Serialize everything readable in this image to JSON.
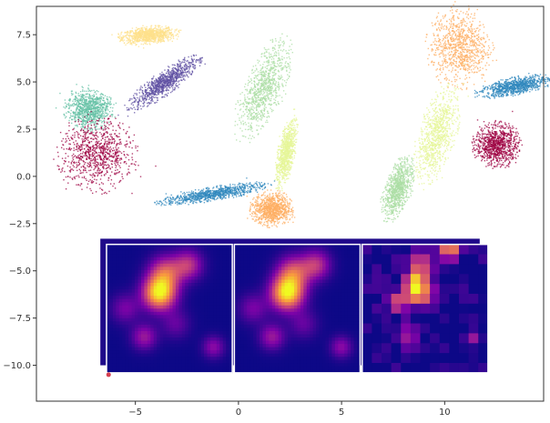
{
  "chart_data": {
    "type": "scatter",
    "title": "",
    "xlabel": "",
    "ylabel": "",
    "xlim": [
      -9.8,
      14.8
    ],
    "ylim": [
      -11.9,
      9.0
    ],
    "grid": false,
    "x_ticks": [
      -5,
      0,
      5,
      10
    ],
    "y_ticks": [
      -10.0,
      -7.5,
      -5.0,
      -2.5,
      0.0,
      2.5,
      5.0,
      7.5
    ],
    "x_tick_labels": [
      "−5",
      "0",
      "5",
      "10"
    ],
    "y_tick_labels": [
      "−10.0",
      "−7.5",
      "−5.0",
      "−2.5",
      "0.0",
      "2.5",
      "5.0",
      "7.5"
    ],
    "clusters": [
      {
        "id": "cream-top",
        "color": "#fee08b",
        "center": [
          -4.4,
          7.5
        ],
        "extent": [
          1.4,
          0.45
        ],
        "angle": 5
      },
      {
        "id": "purple-diagonal",
        "color": "#5e4fa2",
        "center": [
          -3.6,
          5.0
        ],
        "extent": [
          2.1,
          0.55
        ],
        "angle": 38
      },
      {
        "id": "teal-left",
        "color": "#66c2a5",
        "center": [
          -7.3,
          3.6
        ],
        "extent": [
          1.1,
          1.1
        ],
        "angle": 30
      },
      {
        "id": "crimson-blob",
        "color": "#9e0142",
        "center": [
          -6.9,
          1.2
        ],
        "extent": [
          1.85,
          1.9
        ],
        "angle": 0
      },
      {
        "id": "lightgreen-leaf",
        "color": "#abdda4",
        "center": [
          1.2,
          4.7
        ],
        "extent": [
          2.8,
          0.9
        ],
        "angle": 70
      },
      {
        "id": "yellowgreen-small",
        "color": "#e6f598",
        "center": [
          2.3,
          1.3
        ],
        "extent": [
          1.8,
          0.4
        ],
        "angle": 80
      },
      {
        "id": "blue-streak",
        "color": "#3288bd",
        "center": [
          -1.3,
          -0.9
        ],
        "extent": [
          2.6,
          0.35
        ],
        "angle": 10
      },
      {
        "id": "orange-bottom",
        "color": "#fdae61",
        "center": [
          1.6,
          -1.7
        ],
        "extent": [
          1.0,
          0.9
        ],
        "angle": 0
      },
      {
        "id": "orange-top-right",
        "color": "#fdae61",
        "center": [
          10.7,
          6.9
        ],
        "extent": [
          1.5,
          2.0
        ],
        "angle": 0
      },
      {
        "id": "yellowgreen-right",
        "color": "#e6f598",
        "center": [
          9.6,
          2.2
        ],
        "extent": [
          2.6,
          0.85
        ],
        "angle": 75
      },
      {
        "id": "lightgreen-right",
        "color": "#abdda4",
        "center": [
          7.7,
          -0.6
        ],
        "extent": [
          1.7,
          0.6
        ],
        "angle": 75
      },
      {
        "id": "blue-right",
        "color": "#3288bd",
        "center": [
          13.4,
          4.8
        ],
        "extent": [
          1.8,
          0.45
        ],
        "angle": 12
      },
      {
        "id": "crimson-right",
        "color": "#9e0142",
        "center": [
          12.5,
          1.7
        ],
        "extent": [
          1.1,
          1.15
        ],
        "angle": 0
      }
    ],
    "insets": [
      {
        "id": "density-smooth-1",
        "colormap": "plasma",
        "extent_x": [
          -6.4,
          -0.3
        ],
        "extent_y": [
          -10.4,
          -3.6
        ],
        "peaks": [
          {
            "x": 0.42,
            "y": 0.38,
            "v": 1.0,
            "s": 0.09
          },
          {
            "x": 0.47,
            "y": 0.22,
            "v": 0.55,
            "s": 0.09
          },
          {
            "x": 0.65,
            "y": 0.16,
            "v": 0.45,
            "s": 0.08
          },
          {
            "x": 0.3,
            "y": 0.72,
            "v": 0.35,
            "s": 0.07
          },
          {
            "x": 0.85,
            "y": 0.8,
            "v": 0.3,
            "s": 0.06
          },
          {
            "x": 0.15,
            "y": 0.5,
            "v": 0.25,
            "s": 0.08
          },
          {
            "x": 0.55,
            "y": 0.62,
            "v": 0.2,
            "s": 0.08
          }
        ]
      },
      {
        "id": "density-smooth-2",
        "colormap": "plasma",
        "extent_x": [
          -0.2,
          5.9
        ],
        "extent_y": [
          -10.4,
          -3.6
        ],
        "peaks": [
          {
            "x": 0.42,
            "y": 0.38,
            "v": 1.0,
            "s": 0.09
          },
          {
            "x": 0.47,
            "y": 0.22,
            "v": 0.55,
            "s": 0.09
          },
          {
            "x": 0.65,
            "y": 0.16,
            "v": 0.45,
            "s": 0.08
          },
          {
            "x": 0.3,
            "y": 0.72,
            "v": 0.35,
            "s": 0.07
          },
          {
            "x": 0.85,
            "y": 0.8,
            "v": 0.3,
            "s": 0.06
          },
          {
            "x": 0.15,
            "y": 0.5,
            "v": 0.25,
            "s": 0.08
          },
          {
            "x": 0.55,
            "y": 0.62,
            "v": 0.2,
            "s": 0.08
          }
        ]
      },
      {
        "id": "density-histogram",
        "colormap": "plasma",
        "extent_x": [
          6.0,
          12.1
        ],
        "extent_y": [
          -10.4,
          -3.6
        ],
        "bins": 13,
        "peaks": [
          {
            "x": 0.45,
            "y": 0.35,
            "v": 1.0,
            "s": 0.08
          },
          {
            "x": 0.45,
            "y": 0.18,
            "v": 0.6,
            "s": 0.07
          },
          {
            "x": 0.7,
            "y": 0.05,
            "v": 0.7,
            "s": 0.06
          },
          {
            "x": 0.3,
            "y": 0.45,
            "v": 0.45,
            "s": 0.07
          },
          {
            "x": 0.35,
            "y": 0.7,
            "v": 0.35,
            "s": 0.06
          },
          {
            "x": 0.9,
            "y": 0.75,
            "v": 0.3,
            "s": 0.05
          }
        ]
      }
    ],
    "background_strips": {
      "top_y": -3.3,
      "color": "#1f0a8a",
      "left_x": -6.7,
      "right_x": 11.7
    }
  }
}
